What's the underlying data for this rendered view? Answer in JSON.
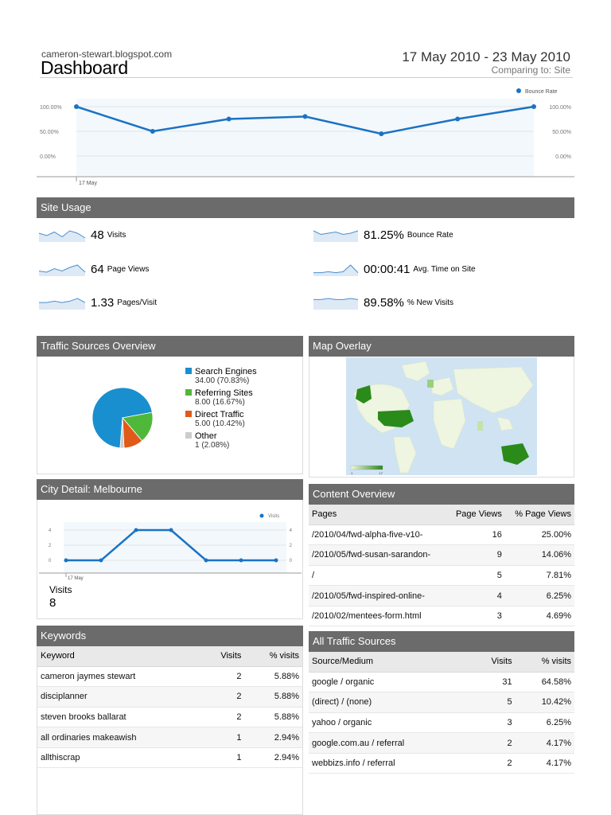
{
  "header": {
    "site_name": "cameron-stewart.blogspot.com",
    "title": "Dashboard",
    "date_range": "17 May 2010 - 23 May 2010",
    "comparing": "Comparing to: Site"
  },
  "colors": {
    "line_blue": "#1a73c4",
    "panel_header": "#6b6b6b",
    "pie_search": "#1a8fcf",
    "pie_referring": "#4fb83a",
    "pie_direct": "#e05a1a",
    "pie_other": "#cccccc",
    "map_dark": "#2a8a1a",
    "map_light": "#eef5e0"
  },
  "chart_data": [
    {
      "type": "line",
      "series": [
        {
          "name": "Bounce Rate",
          "values": [
            100,
            50,
            75,
            80,
            45,
            75,
            100
          ]
        }
      ],
      "x_label_first": "17 May",
      "y_ticks": [
        "100.00%",
        "50.00%",
        "0.00%"
      ],
      "ylim": [
        0,
        100
      ],
      "legend": "top-right"
    },
    {
      "type": "line",
      "series": [
        {
          "name": "Visits",
          "values": [
            0,
            0,
            4,
            4,
            0,
            0,
            0
          ]
        }
      ],
      "x_label_first": "17 May",
      "y_ticks": [
        "4",
        "2",
        "0"
      ],
      "ylim": [
        0,
        4.5
      ],
      "legend": "top-right"
    },
    {
      "type": "pie",
      "categories": [
        "Search Engines",
        "Referring Sites",
        "Direct Traffic",
        "Other"
      ],
      "values": [
        34,
        8,
        5,
        1
      ]
    }
  ],
  "site_usage": {
    "title": "Site Usage",
    "metrics": [
      {
        "value": "48",
        "label": "Visits",
        "spark": [
          6,
          4,
          7,
          3,
          8,
          6,
          2
        ]
      },
      {
        "value": "81.25%",
        "label": "Bounce Rate",
        "spark": [
          8,
          5,
          6,
          7,
          5,
          6,
          8
        ]
      },
      {
        "value": "64",
        "label": "Page Views",
        "spark": [
          3,
          2,
          5,
          3,
          6,
          8,
          2
        ]
      },
      {
        "value": "00:00:41",
        "label": "Avg. Time on Site",
        "spark": [
          2,
          2,
          3,
          2,
          3,
          10,
          2
        ]
      },
      {
        "value": "1.33",
        "label": "Pages/Visit",
        "spark": [
          4,
          4,
          5,
          4,
          5,
          7,
          4
        ]
      },
      {
        "value": "89.58%",
        "label": "% New Visits",
        "spark": [
          8,
          8,
          9,
          8,
          8,
          9,
          8
        ]
      }
    ]
  },
  "traffic_sources": {
    "title": "Traffic Sources Overview",
    "items": [
      {
        "name": "Search Engines",
        "detail": "34.00 (70.83%)"
      },
      {
        "name": "Referring Sites",
        "detail": "8.00 (16.67%)"
      },
      {
        "name": "Direct Traffic",
        "detail": "5.00 (10.42%)"
      },
      {
        "name": "Other",
        "detail": "1 (2.08%)"
      }
    ]
  },
  "map_overlay": {
    "title": "Map Overlay",
    "scale_min": "1",
    "scale_max": "17"
  },
  "city_detail": {
    "title": "City Detail: Melbourne",
    "metric_label": "Visits",
    "metric_value": "8",
    "legend": "Visits"
  },
  "content_overview": {
    "title": "Content Overview",
    "columns": [
      "Pages",
      "Page Views",
      "% Page Views"
    ],
    "rows": [
      [
        "/2010/04/fwd-alpha-five-v10-",
        "16",
        "25.00%"
      ],
      [
        "/2010/05/fwd-susan-sarandon-",
        "9",
        "14.06%"
      ],
      [
        "/",
        "5",
        "7.81%"
      ],
      [
        "/2010/05/fwd-inspired-online-",
        "4",
        "6.25%"
      ],
      [
        "/2010/02/mentees-form.html",
        "3",
        "4.69%"
      ]
    ]
  },
  "keywords": {
    "title": "Keywords",
    "columns": [
      "Keyword",
      "Visits",
      "% visits"
    ],
    "rows": [
      [
        "cameron jaymes stewart",
        "2",
        "5.88%"
      ],
      [
        "disciplanner",
        "2",
        "5.88%"
      ],
      [
        "steven brooks ballarat",
        "2",
        "5.88%"
      ],
      [
        "all ordinaries makeawish",
        "1",
        "2.94%"
      ],
      [
        "allthiscrap",
        "1",
        "2.94%"
      ]
    ]
  },
  "all_traffic": {
    "title": "All Traffic Sources",
    "columns": [
      "Source/Medium",
      "Visits",
      "% visits"
    ],
    "rows": [
      [
        "google / organic",
        "31",
        "64.58%"
      ],
      [
        "(direct) / (none)",
        "5",
        "10.42%"
      ],
      [
        "yahoo / organic",
        "3",
        "6.25%"
      ],
      [
        "google.com.au / referral",
        "2",
        "4.17%"
      ],
      [
        "webbizs.info / referral",
        "2",
        "4.17%"
      ]
    ]
  }
}
